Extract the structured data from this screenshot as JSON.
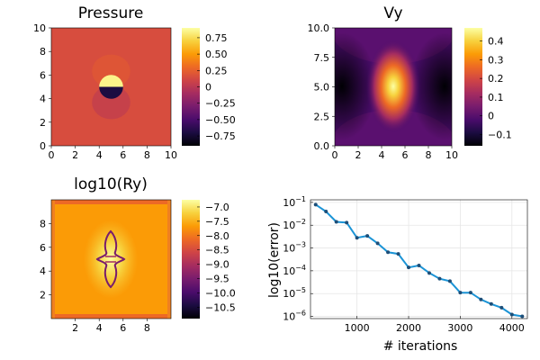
{
  "colors": {
    "inferno_stops": [
      "#000004",
      "#1b0c41",
      "#4a0c6b",
      "#781c6d",
      "#a52c60",
      "#cf4446",
      "#ed6925",
      "#fb9b06",
      "#f7d13d",
      "#fcffa4"
    ],
    "line": "#1b94d6",
    "marker": "#1d4e78"
  },
  "chart_data": [
    {
      "type": "heatmap",
      "title": "Pressure",
      "xlim": [
        0,
        10
      ],
      "ylim": [
        0,
        10
      ],
      "xticks": [
        0,
        2,
        4,
        6,
        8,
        10
      ],
      "yticks": [
        0,
        2,
        4,
        6,
        8,
        10
      ],
      "colorbar": {
        "range": [
          -0.9,
          0.9
        ],
        "ticks": [
          0.75,
          0.5,
          0.25,
          0,
          -0.25,
          -0.5,
          -0.75
        ],
        "tick_labels": [
          "0.75",
          "0.50",
          "0.25",
          "0",
          "−0.25",
          "−0.50",
          "−0.75"
        ]
      },
      "background_value": 0.15,
      "inclusion": {
        "center": [
          5,
          5
        ],
        "radius": 1.0,
        "upper_value": 0.85,
        "lower_value": -0.7
      }
    },
    {
      "type": "heatmap",
      "title": "Vy",
      "xlim": [
        0,
        10
      ],
      "ylim": [
        0,
        10
      ],
      "xticks": [
        0,
        2,
        4,
        6,
        8,
        10
      ],
      "yticks": [
        0,
        2.5,
        5,
        7.5,
        10
      ],
      "xtick_labels": [
        "0",
        "2",
        "4",
        "6",
        "8",
        "10"
      ],
      "ytick_labels": [
        "0.0",
        "2.5",
        "5.0",
        "7.5",
        "10.0"
      ],
      "colorbar": {
        "range": [
          -0.16,
          0.47
        ],
        "ticks": [
          0.4,
          0.3,
          0.2,
          0.1,
          0,
          -0.1
        ],
        "tick_labels": [
          "0.4",
          "0.3",
          "0.2",
          "0.1",
          "0",
          "−0.1"
        ]
      },
      "center_max": 0.47,
      "side_min": -0.15
    },
    {
      "type": "heatmap",
      "title": "log10(Ry)",
      "xlim": [
        0,
        10
      ],
      "ylim": [
        0,
        10
      ],
      "xticks": [
        2,
        4,
        6,
        8
      ],
      "yticks": [
        2,
        4,
        6,
        8
      ],
      "colorbar": {
        "range": [
          -10.9,
          -6.75
        ],
        "ticks": [
          -7.0,
          -7.5,
          -8.0,
          -8.5,
          -9.0,
          -9.5,
          -10.0,
          -10.5
        ],
        "tick_labels": [
          "−7.0",
          "−7.5",
          "−8.0",
          "−8.5",
          "−9.0",
          "−9.5",
          "−10.0",
          "−10.5"
        ]
      },
      "center_value": -6.8,
      "edge_value": -7.3,
      "ring_value": -10.4
    },
    {
      "type": "line",
      "xlabel": "# iterations",
      "ylabel": "log10(error)",
      "yscale": "log",
      "xlim": [
        100,
        4300
      ],
      "ylim": [
        8e-07,
        0.13
      ],
      "xticks": [
        1000,
        2000,
        3000,
        4000
      ],
      "ytick_exponents": [
        -1,
        -2,
        -3,
        -4,
        -5,
        -6
      ],
      "grid": true,
      "x": [
        200,
        400,
        600,
        800,
        1000,
        1200,
        1400,
        1600,
        1800,
        2000,
        2200,
        2400,
        2600,
        2800,
        3000,
        3200,
        3400,
        3600,
        3800,
        4000,
        4200
      ],
      "y": [
        0.08,
        0.04,
        0.014,
        0.013,
        0.0028,
        0.0034,
        0.0016,
        0.00065,
        0.00055,
        0.00014,
        0.00017,
        8e-05,
        4.5e-05,
        3.5e-05,
        1.1e-05,
        1.1e-05,
        5.5e-06,
        3.5e-06,
        2.4e-06,
        1.2e-06,
        1e-06
      ]
    }
  ]
}
